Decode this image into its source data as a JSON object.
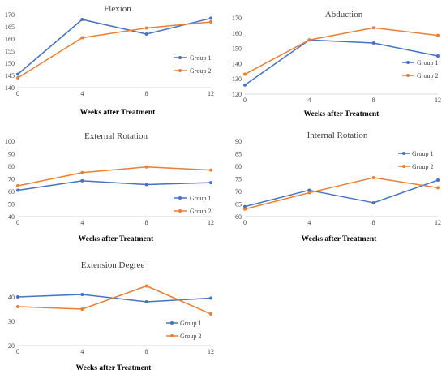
{
  "colors": {
    "group1": "#4472c4",
    "group2": "#ed7d31"
  },
  "chart_data": [
    {
      "type": "line",
      "title": "Flexion",
      "xlabel": "Weeks after Treatment",
      "ylabel": "",
      "x": [
        0,
        4,
        8,
        12
      ],
      "x_tick_labels": [
        "0",
        "4",
        "8",
        "12"
      ],
      "ylim": [
        140,
        170
      ],
      "y_ticks": [
        140,
        145,
        150,
        155,
        160,
        165,
        170
      ],
      "y_tick_labels": [
        "140",
        "145",
        "150",
        "155",
        "160",
        "165",
        "170"
      ],
      "grid": false,
      "legend": "right",
      "series": [
        {
          "name": "Group 1",
          "values": [
            145.5,
            168,
            162,
            168.5
          ]
        },
        {
          "name": "Group 2",
          "values": [
            144,
            160.5,
            164.5,
            167
          ]
        }
      ]
    },
    {
      "type": "line",
      "title": "Abduction",
      "xlabel": "Weeks after Treatment",
      "ylabel": "",
      "x": [
        0,
        4,
        8,
        12
      ],
      "x_tick_labels": [
        "0",
        "4",
        "8",
        "12"
      ],
      "ylim": [
        120,
        170
      ],
      "y_ticks": [
        120,
        130,
        140,
        150,
        160,
        170
      ],
      "y_tick_labels": [
        "120",
        "130",
        "140",
        "150",
        "160",
        "170"
      ],
      "grid": false,
      "legend": "right",
      "series": [
        {
          "name": "Group 1",
          "values": [
            126,
            155.5,
            153.5,
            145
          ]
        },
        {
          "name": "Group 2",
          "values": [
            133,
            155.5,
            163.5,
            158.5
          ]
        }
      ]
    },
    {
      "type": "line",
      "title": "External Rotation",
      "xlabel": "Weeks after Treatment",
      "ylabel": "",
      "x": [
        0,
        4,
        8,
        12
      ],
      "x_tick_labels": [
        "0",
        "4",
        "8",
        "12"
      ],
      "ylim": [
        40,
        100
      ],
      "y_ticks": [
        40,
        50,
        60,
        70,
        80,
        90,
        100
      ],
      "y_tick_labels": [
        "40",
        "50",
        "60",
        "70",
        "80",
        "90",
        "100"
      ],
      "grid": false,
      "legend": "right",
      "series": [
        {
          "name": "Group 1",
          "values": [
            61,
            68.5,
            65.5,
            67
          ]
        },
        {
          "name": "Group 2",
          "values": [
            64.5,
            75,
            79.5,
            77
          ]
        }
      ]
    },
    {
      "type": "line",
      "title": "Internal Rotation",
      "xlabel": "Weeks after Treatment",
      "ylabel": "",
      "x": [
        0,
        4,
        8,
        12
      ],
      "x_tick_labels": [
        "0",
        "4",
        "8",
        "12"
      ],
      "ylim": [
        60,
        90
      ],
      "y_ticks": [
        60,
        65,
        70,
        75,
        80,
        85,
        90
      ],
      "y_tick_labels": [
        "60",
        "65",
        "70",
        "75",
        "80",
        "85",
        "90"
      ],
      "grid": false,
      "legend": "right",
      "series": [
        {
          "name": "Group 1",
          "values": [
            64,
            70.5,
            65.5,
            74.5
          ]
        },
        {
          "name": "Group 2",
          "values": [
            63,
            69.5,
            75.5,
            71.5
          ]
        }
      ]
    },
    {
      "type": "line",
      "title": "Extension Degree",
      "xlabel": "Weeks after Treatment",
      "ylabel": "",
      "x": [
        0,
        4,
        8,
        12
      ],
      "x_tick_labels": [
        "0",
        "4",
        "8",
        "12"
      ],
      "ylim": [
        20,
        50
      ],
      "y_ticks": [
        20,
        30,
        40
      ],
      "y_tick_labels": [
        "20",
        "30",
        "40"
      ],
      "grid": false,
      "legend": "bottom-right",
      "series": [
        {
          "name": "Group 1",
          "values": [
            40,
            41,
            38,
            39.5
          ]
        },
        {
          "name": "Group 2",
          "values": [
            36,
            35,
            44.5,
            33
          ]
        }
      ]
    }
  ]
}
